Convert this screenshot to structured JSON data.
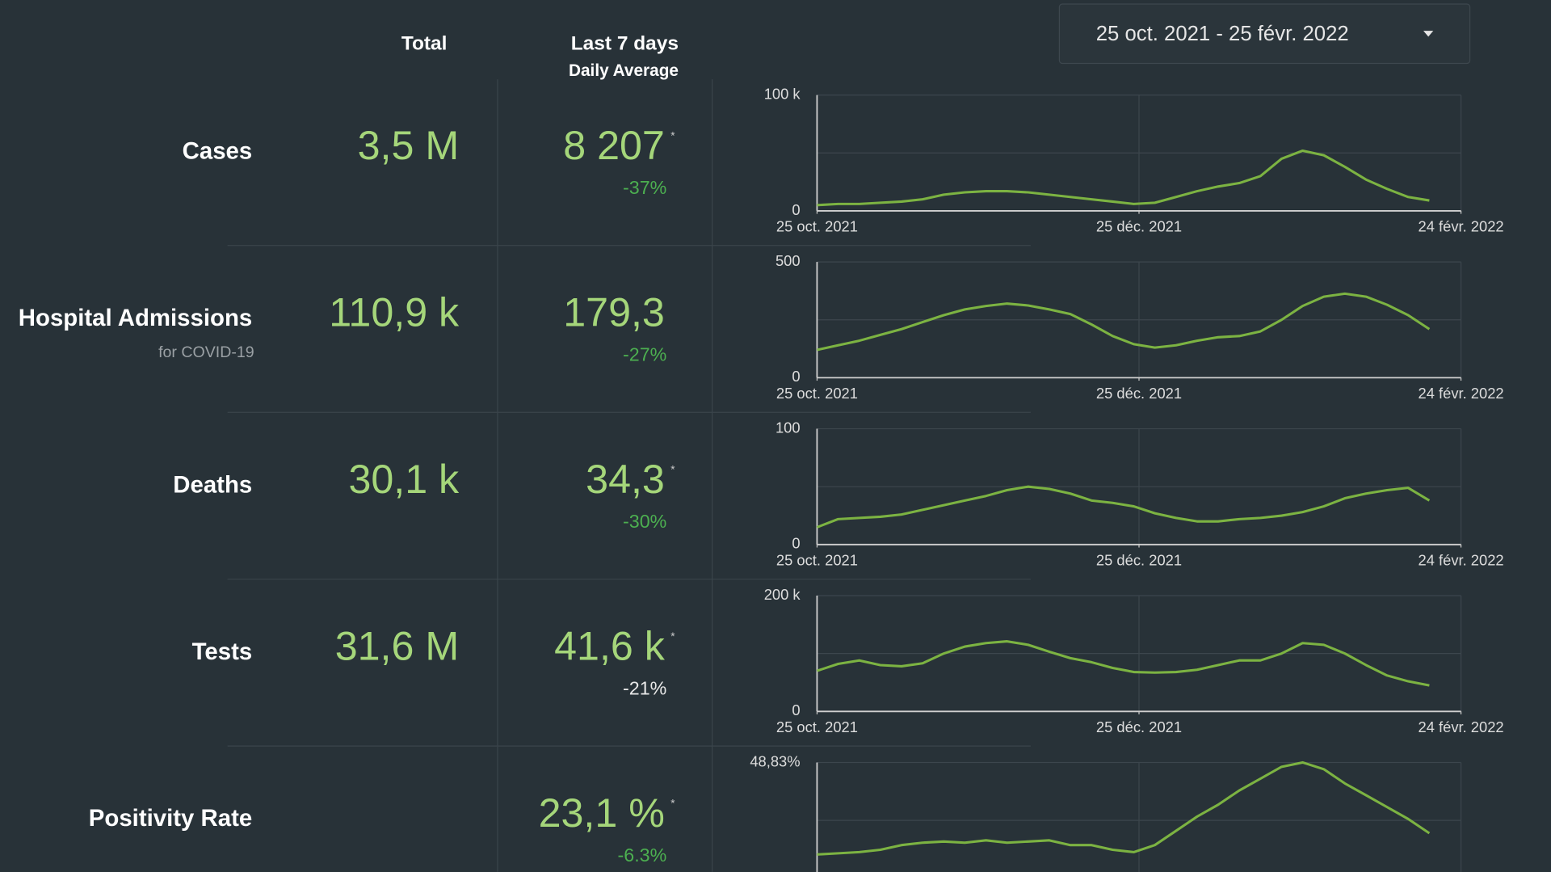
{
  "header": {
    "total": "Total",
    "last7": "Last 7 days",
    "daily_average": "Daily Average"
  },
  "date_range": "25 oct. 2021 - 25 févr. 2022",
  "rows": [
    {
      "label": "Cases",
      "total": "3,5 M",
      "average": "8 207",
      "asterisk": "*",
      "change": "-37%",
      "change_color": "#4caf50"
    },
    {
      "label": "Hospital Admissions",
      "sublabel": "for COVID-19",
      "total": "110,9 k",
      "average": "179,3",
      "change": "-27%",
      "change_color": "#4caf50"
    },
    {
      "label": "Deaths",
      "total": "30,1 k",
      "average": "34,3",
      "asterisk": "*",
      "change": "-30%",
      "change_color": "#4caf50"
    },
    {
      "label": "Tests",
      "total": "31,6 M",
      "average": "41,6 k",
      "asterisk": "*",
      "change": "-21%",
      "change_color": "#e8e8e8"
    },
    {
      "label": "Positivity Rate",
      "average": "23,1 %",
      "asterisk": "*",
      "change": "-6.3%",
      "change_color": "#4caf50"
    }
  ],
  "chart_data": [
    {
      "type": "line",
      "color": "#7cb342",
      "ylim": [
        0,
        100000
      ],
      "yticks": [
        0,
        {
          "value": 100000,
          "label": "100 k"
        }
      ],
      "xlim": [
        0,
        122
      ],
      "xticks": [
        {
          "value": 0,
          "label": "25 oct. 2021"
        },
        {
          "value": 61,
          "label": "25 déc. 2021"
        },
        {
          "value": 122,
          "label": "24 févr. 2022"
        }
      ],
      "x": [
        0,
        4,
        8,
        12,
        16,
        20,
        24,
        28,
        32,
        36,
        40,
        44,
        48,
        52,
        56,
        60,
        64,
        68,
        72,
        76,
        80,
        84,
        88,
        92,
        96,
        100,
        104,
        108,
        112,
        116
      ],
      "values": [
        5000,
        6000,
        6000,
        7000,
        8000,
        10000,
        14000,
        16000,
        17000,
        17000,
        16000,
        14000,
        12000,
        10000,
        8000,
        6000,
        7000,
        12000,
        17000,
        21000,
        24000,
        30000,
        45000,
        52000,
        48000,
        38000,
        27000,
        19000,
        12000,
        9000
      ]
    },
    {
      "type": "line",
      "color": "#7cb342",
      "ylim": [
        0,
        500
      ],
      "yticks": [
        0,
        500
      ],
      "xlim": [
        0,
        122
      ],
      "xticks": [
        {
          "value": 0,
          "label": "25 oct. 2021"
        },
        {
          "value": 61,
          "label": "25 déc. 2021"
        },
        {
          "value": 122,
          "label": "24 févr. 2022"
        }
      ],
      "x": [
        0,
        4,
        8,
        12,
        16,
        20,
        24,
        28,
        32,
        36,
        40,
        44,
        48,
        52,
        56,
        60,
        64,
        68,
        72,
        76,
        80,
        84,
        88,
        92,
        96,
        100,
        104,
        108,
        112,
        116
      ],
      "values": [
        120,
        140,
        160,
        185,
        210,
        240,
        270,
        295,
        310,
        320,
        312,
        295,
        275,
        230,
        180,
        145,
        130,
        140,
        160,
        175,
        180,
        200,
        250,
        310,
        350,
        363,
        350,
        315,
        270,
        210
      ]
    },
    {
      "type": "line",
      "color": "#7cb342",
      "ylim": [
        0,
        100
      ],
      "yticks": [
        0,
        100
      ],
      "xlim": [
        0,
        122
      ],
      "xticks": [
        {
          "value": 0,
          "label": "25 oct. 2021"
        },
        {
          "value": 61,
          "label": "25 déc. 2021"
        },
        {
          "value": 122,
          "label": "24 févr. 2022"
        }
      ],
      "x": [
        0,
        4,
        8,
        12,
        16,
        20,
        24,
        28,
        32,
        36,
        40,
        44,
        48,
        52,
        56,
        60,
        64,
        68,
        72,
        76,
        80,
        84,
        88,
        92,
        96,
        100,
        104,
        108,
        112,
        116
      ],
      "values": [
        15,
        22,
        23,
        24,
        26,
        30,
        34,
        38,
        42,
        47,
        50,
        48,
        44,
        38,
        36,
        33,
        27,
        23,
        20,
        20,
        22,
        23,
        25,
        28,
        33,
        40,
        44,
        47,
        49,
        38
      ]
    },
    {
      "type": "line",
      "color": "#7cb342",
      "ylim": [
        0,
        200000
      ],
      "yticks": [
        0,
        {
          "value": 200000,
          "label": "200 k"
        }
      ],
      "xlim": [
        0,
        122
      ],
      "xticks": [
        {
          "value": 0,
          "label": "25 oct. 2021"
        },
        {
          "value": 61,
          "label": "25 déc. 2021"
        },
        {
          "value": 122,
          "label": "24 févr. 2022"
        }
      ],
      "x": [
        0,
        4,
        8,
        12,
        16,
        20,
        24,
        28,
        32,
        36,
        40,
        44,
        48,
        52,
        56,
        60,
        64,
        68,
        72,
        76,
        80,
        84,
        88,
        92,
        96,
        100,
        104,
        108,
        112,
        116
      ],
      "values": [
        70000,
        82000,
        88000,
        80000,
        78000,
        83000,
        100000,
        112000,
        118000,
        121000,
        115000,
        103000,
        92000,
        85000,
        75000,
        68000,
        67000,
        68000,
        72000,
        80000,
        88000,
        88000,
        100000,
        118000,
        115000,
        100000,
        80000,
        62000,
        52000,
        45000
      ]
    },
    {
      "type": "line",
      "color": "#7cb342",
      "ylim": [
        0,
        48.83
      ],
      "yticks": [
        {
          "value": 48.83,
          "label": "48,83%"
        }
      ],
      "xlim": [
        0,
        122
      ],
      "x": [
        0,
        4,
        8,
        12,
        16,
        20,
        24,
        28,
        32,
        36,
        40,
        44,
        48,
        52,
        56,
        60,
        64,
        68,
        72,
        76,
        80,
        84,
        88,
        92,
        96,
        100,
        104,
        108,
        112,
        116
      ],
      "values": [
        10,
        10.5,
        11,
        12,
        14,
        15,
        15.5,
        15,
        16,
        15,
        15.5,
        16,
        14,
        14,
        12,
        11,
        14,
        20,
        26,
        31,
        37,
        42,
        47,
        48.83,
        46,
        40,
        35,
        30,
        25,
        19
      ]
    }
  ]
}
